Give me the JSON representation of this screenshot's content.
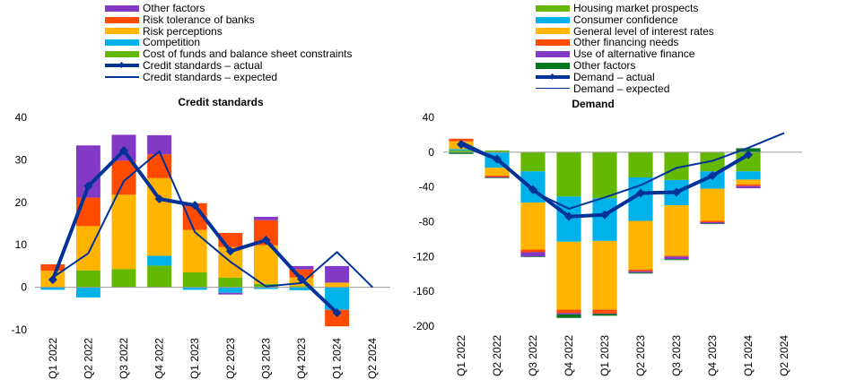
{
  "left_legend": [
    {
      "label": "Other factors",
      "kind": "bar",
      "color": "#8139c6"
    },
    {
      "label": "Risk tolerance of banks",
      "kind": "bar",
      "color": "#ff4b00"
    },
    {
      "label": "Risk perceptions",
      "kind": "bar",
      "color": "#ffb400"
    },
    {
      "label": "Competition",
      "kind": "bar",
      "color": "#00b1ea"
    },
    {
      "label": "Cost of funds and balance sheet constraints",
      "kind": "bar",
      "color": "#65b800"
    },
    {
      "label": "Credit standards – actual",
      "kind": "line-thick",
      "color": "#003299"
    },
    {
      "label": "Credit standards – expected",
      "kind": "line-thin",
      "color": "#003299"
    }
  ],
  "right_legend": [
    {
      "label": "Housing market prospects",
      "kind": "bar",
      "color": "#65b800"
    },
    {
      "label": "Consumer confidence",
      "kind": "bar",
      "color": "#00b1ea"
    },
    {
      "label": "General level of interest rates",
      "kind": "bar",
      "color": "#ffb400"
    },
    {
      "label": "Other financing needs",
      "kind": "bar",
      "color": "#ff4b00"
    },
    {
      "label": "Use of alternative finance",
      "kind": "bar",
      "color": "#8139c6"
    },
    {
      "label": "Other factors",
      "kind": "bar",
      "color": "#00781e"
    },
    {
      "label": "Demand – actual",
      "kind": "line-thick",
      "color": "#003299"
    },
    {
      "label": "Demand – expected",
      "kind": "line-thin",
      "color": "#003299"
    }
  ],
  "chart_data": [
    {
      "type": "bar",
      "stacked": true,
      "title": "Credit standards",
      "categories": [
        "Q1 2022",
        "Q2 2022",
        "Q3 2022",
        "Q4 2022",
        "Q1 2023",
        "Q2 2023",
        "Q3 2023",
        "Q4 2023",
        "Q1 2024",
        "Q2 2024"
      ],
      "ylim": [
        -10,
        40
      ],
      "yticks": [
        -10,
        0,
        10,
        20,
        30,
        40
      ],
      "series": [
        {
          "name": "Cost of funds and balance sheet constraints",
          "color": "#65b800",
          "values": [
            0,
            4,
            4.3,
            5.1,
            3.5,
            2.3,
            0.8,
            0.3,
            0,
            null
          ]
        },
        {
          "name": "Competition",
          "color": "#00b1ea",
          "values": [
            -0.6,
            -2.4,
            0,
            2.3,
            -0.6,
            -1.3,
            -0.4,
            -0.7,
            -5.3,
            null
          ]
        },
        {
          "name": "Risk perceptions",
          "color": "#ffb400",
          "values": [
            3.9,
            10.4,
            17.5,
            18.3,
            10,
            7.2,
            9.1,
            2,
            1.1,
            null
          ]
        },
        {
          "name": "Risk tolerance of banks",
          "color": "#ff4b00",
          "values": [
            1.5,
            6.7,
            8,
            5.6,
            6.3,
            3.3,
            5.9,
            1.9,
            -3.9,
            null
          ]
        },
        {
          "name": "Other factors",
          "color": "#8139c6",
          "values": [
            0,
            12.3,
            6.1,
            4.5,
            0,
            -0.4,
            0.8,
            0.8,
            3.9,
            null
          ]
        }
      ],
      "lines": [
        {
          "name": "Credit standards – actual",
          "color": "#003299",
          "width": "thick",
          "marker": "diamond",
          "values": [
            1.8,
            23.8,
            32.2,
            20.8,
            19.3,
            8.5,
            11.1,
            1.9,
            -6,
            null
          ]
        },
        {
          "name": "Credit standards – expected",
          "color": "#003299",
          "width": "thin",
          "marker": "none",
          "values": [
            2.3,
            8,
            25,
            32,
            13,
            6,
            0.2,
            1,
            8.3,
            0
          ]
        }
      ]
    },
    {
      "type": "bar",
      "stacked": true,
      "title": "Demand",
      "categories": [
        "Q1 2022",
        "Q2 2022",
        "Q3 2022",
        "Q4 2022",
        "Q1 2023",
        "Q2 2023",
        "Q3 2023",
        "Q4 2023",
        "Q1 2024",
        "Q2 2024"
      ],
      "ylim": [
        -200,
        40
      ],
      "yticks": [
        -200,
        -160,
        -120,
        -80,
        -40,
        0,
        40
      ],
      "series": [
        {
          "name": "Housing market prospects",
          "color": "#65b800",
          "values": [
            2,
            2,
            -22,
            -51,
            -53,
            -29,
            -32,
            -22,
            -22,
            null
          ]
        },
        {
          "name": "Consumer confidence",
          "color": "#00b1ea",
          "values": [
            1.5,
            -18,
            -36,
            -52,
            -49,
            -50,
            -29,
            -20,
            -9.5,
            null
          ]
        },
        {
          "name": "General level of interest rates",
          "color": "#ffb400",
          "values": [
            9,
            -9,
            -54,
            -78,
            -79,
            -56,
            -58,
            -37,
            -5.5,
            null
          ]
        },
        {
          "name": "Other financing needs",
          "color": "#ff4b00",
          "values": [
            3,
            -1.5,
            -3,
            -4,
            -4.5,
            -2,
            -1,
            -1.5,
            -2,
            null
          ]
        },
        {
          "name": "Use of alternative finance",
          "color": "#8139c6",
          "values": [
            -0.5,
            -0.8,
            -5,
            -1.5,
            -0.5,
            -1.5,
            -3,
            -1.5,
            -2.5,
            null
          ]
        },
        {
          "name": "Other factors",
          "color": "#00781e",
          "values": [
            -1.5,
            -0.5,
            -0.5,
            -4,
            -2,
            -1,
            -1,
            -0.5,
            4.5,
            null
          ]
        }
      ],
      "lines": [
        {
          "name": "Demand – actual",
          "color": "#003299",
          "width": "thick",
          "marker": "diamond",
          "values": [
            9,
            -8,
            -43,
            -74,
            -72,
            -47,
            -46,
            -27,
            -3,
            null
          ]
        },
        {
          "name": "Demand – expected",
          "color": "#003299",
          "width": "thin",
          "marker": "none",
          "values": [
            12,
            -8,
            -45,
            -65,
            -52,
            -38,
            -18,
            -10,
            5,
            22
          ]
        }
      ]
    }
  ]
}
